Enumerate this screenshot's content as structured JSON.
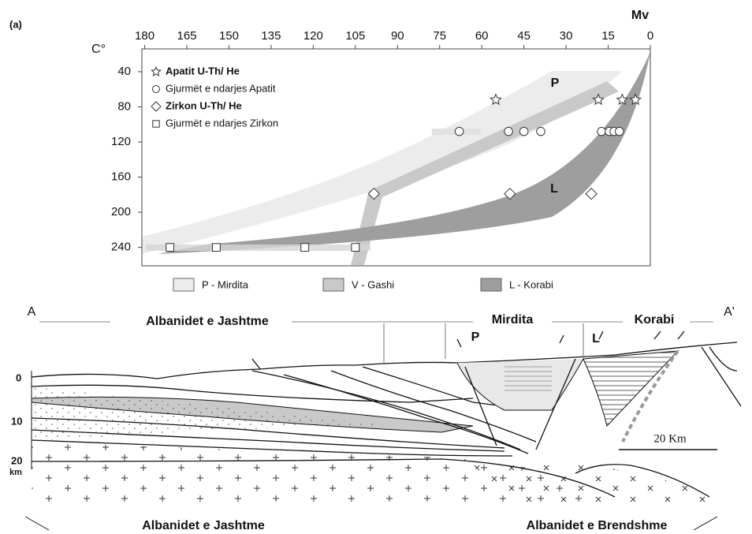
{
  "chart_data": {
    "type": "scatter",
    "panel_label": "(a)",
    "x_label": "Mv",
    "y_label": "C°",
    "xlim": [
      181,
      0
    ],
    "xticks": [
      180,
      165,
      150,
      135,
      120,
      105,
      90,
      75,
      60,
      45,
      30,
      15,
      0
    ],
    "ylim": [
      14,
      261
    ],
    "yticks": [
      40,
      80,
      120,
      160,
      200,
      240
    ],
    "series": [
      {
        "name": "Apatit U-Th/ He",
        "marker": "star",
        "bold": true,
        "color": "#333333",
        "x": [
          55,
          18.5,
          10,
          5.3
        ],
        "values": [
          72,
          72,
          72,
          72
        ]
      },
      {
        "name": "Gjurmët e ndarjes Apatit",
        "marker": "circle",
        "bold": false,
        "color": "#333333",
        "x": [
          68,
          50.5,
          45,
          39,
          17.4,
          14.6,
          12.9,
          11
        ],
        "values": [
          108,
          108,
          108,
          108,
          108,
          108,
          108,
          108
        ]
      },
      {
        "name": "Zirkon U-Th/ He",
        "marker": "diamond",
        "bold": true,
        "color": "#333333",
        "x": [
          98.4,
          50,
          21
        ],
        "values": [
          179,
          179,
          179
        ]
      },
      {
        "name": "Gjurmët e ndarjes Zirkon",
        "marker": "square",
        "bold": false,
        "color": "#333333",
        "x": [
          171,
          154.5,
          123,
          105
        ],
        "values": [
          240,
          240,
          240,
          240
        ]
      }
    ],
    "band_legend": [
      {
        "name": "P - Mirdita",
        "color": "#ececec"
      },
      {
        "name": "V - Gashi",
        "color": "#c9c9c9"
      },
      {
        "name": "L - Korabi",
        "color": "#9e9e9e"
      }
    ],
    "annotations": [
      "P",
      "L"
    ]
  },
  "cross_section": {
    "end_left": "A",
    "end_right": "A'",
    "zones": [
      "Albanidet e Jashtme",
      "Mirdita",
      "Korabi"
    ],
    "units": [
      "P",
      "L"
    ],
    "depth_ticks": [
      "0",
      "10",
      "20"
    ],
    "depth_unit": "km",
    "scale_bar": "20 Km",
    "bottom_left": "Albanidet e Jashtme",
    "bottom_right": "Albanidet e Brendshme"
  }
}
